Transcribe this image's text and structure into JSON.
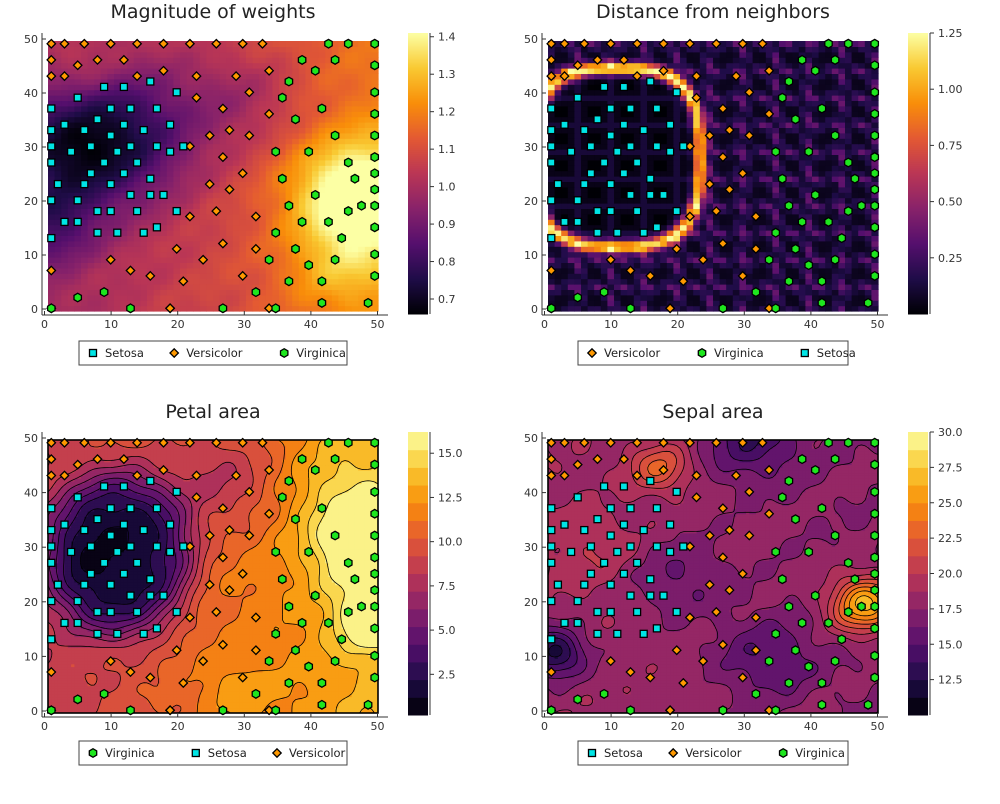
{
  "theme": {
    "colormap": [
      "#000004",
      "#1f0c48",
      "#550f6d",
      "#88226a",
      "#ba3655",
      "#e35933",
      "#f98e09",
      "#f9c932",
      "#fcffa4"
    ],
    "marker_colors": {
      "Setosa": "#00e5e5",
      "Versicolor": "#ff9900",
      "Virginica": "#1ee61e"
    },
    "marker_shapes": {
      "Setosa": "square",
      "Versicolor": "diamond",
      "Virginica": "hexagon"
    }
  },
  "chart_data": [
    {
      "type": "heatmap",
      "title": "Magnitude of weights",
      "field": "magnitude",
      "render": "pixel",
      "xlim": [
        0,
        50
      ],
      "ylim": [
        0,
        50
      ],
      "xticks": [
        0,
        10,
        20,
        30,
        40,
        50
      ],
      "yticks": [
        0,
        10,
        20,
        30,
        40,
        50
      ],
      "colorbar": {
        "min": 0.66,
        "max": 1.41,
        "ticks": [
          "0.7",
          "0.8",
          "0.9",
          "1.0",
          "1.1",
          "1.2",
          "1.3",
          "1.4"
        ]
      },
      "legend": [
        "Setosa",
        "Versicolor",
        "Virginica"
      ]
    },
    {
      "type": "heatmap",
      "title": "Distance from neighbors",
      "field": "distance",
      "render": "pixel",
      "xlim": [
        0,
        50
      ],
      "ylim": [
        0,
        50
      ],
      "xticks": [
        0,
        10,
        20,
        30,
        40,
        50
      ],
      "yticks": [
        0,
        10,
        20,
        30,
        40,
        50
      ],
      "colorbar": {
        "min": 0.0,
        "max": 1.25,
        "ticks": [
          "0.25",
          "0.50",
          "0.75",
          "1.00",
          "1.25"
        ]
      },
      "legend": [
        "Versicolor",
        "Virginica",
        "Setosa"
      ]
    },
    {
      "type": "heatmap",
      "title": "Petal area",
      "field": "petal",
      "render": "contour",
      "xlim": [
        0,
        50
      ],
      "ylim": [
        0,
        50
      ],
      "xticks": [
        0,
        10,
        20,
        30,
        40,
        50
      ],
      "yticks": [
        0,
        10,
        20,
        30,
        40,
        50
      ],
      "colorbar": {
        "min": 0.2,
        "max": 16.2,
        "ticks": [
          "2.5",
          "5.0",
          "7.5",
          "10.0",
          "12.5",
          "15.0"
        ],
        "levels": 16
      },
      "legend": [
        "Virginica",
        "Setosa",
        "Versicolor"
      ]
    },
    {
      "type": "heatmap",
      "title": "Sepal area",
      "field": "sepal",
      "render": "contour",
      "xlim": [
        0,
        50
      ],
      "ylim": [
        0,
        50
      ],
      "xticks": [
        0,
        10,
        20,
        30,
        40,
        50
      ],
      "yticks": [
        0,
        10,
        20,
        30,
        40,
        50
      ],
      "colorbar": {
        "min": 10.0,
        "max": 30.0,
        "ticks": [
          "12.5",
          "15.0",
          "17.5",
          "20.0",
          "22.5",
          "25.0",
          "27.5",
          "30.0"
        ],
        "levels": 16
      },
      "legend": [
        "Setosa",
        "Versicolor",
        "Virginica"
      ]
    }
  ],
  "scatter_points": {
    "Setosa": [
      [
        1,
        14
      ],
      [
        1,
        21
      ],
      [
        1,
        28
      ],
      [
        1,
        31
      ],
      [
        1,
        34
      ],
      [
        1,
        38
      ],
      [
        3,
        17
      ],
      [
        2,
        24
      ],
      [
        3,
        35
      ],
      [
        4,
        30
      ],
      [
        5,
        17
      ],
      [
        5,
        21
      ],
      [
        5,
        40
      ],
      [
        6,
        24
      ],
      [
        6,
        34
      ],
      [
        7,
        26
      ],
      [
        7,
        31
      ],
      [
        8,
        15
      ],
      [
        8,
        19
      ],
      [
        8,
        36
      ],
      [
        9,
        28
      ],
      [
        9,
        42
      ],
      [
        10,
        19
      ],
      [
        10,
        24
      ],
      [
        10,
        33
      ],
      [
        10,
        38
      ],
      [
        11,
        15
      ],
      [
        11,
        30
      ],
      [
        12,
        26
      ],
      [
        12,
        35
      ],
      [
        12,
        42
      ],
      [
        13,
        22
      ],
      [
        13,
        31
      ],
      [
        13,
        38
      ],
      [
        14,
        19
      ],
      [
        14,
        28
      ],
      [
        15,
        15
      ],
      [
        15,
        34
      ],
      [
        16,
        25
      ],
      [
        16,
        43
      ],
      [
        17,
        16
      ],
      [
        17,
        31
      ],
      [
        17,
        38
      ],
      [
        18,
        22
      ],
      [
        19,
        30
      ],
      [
        19,
        35
      ],
      [
        20,
        19
      ],
      [
        20,
        41
      ],
      [
        21,
        31
      ],
      [
        16,
        22
      ]
    ],
    "Versicolor": [
      [
        1,
        1
      ],
      [
        1,
        8
      ],
      [
        1,
        44
      ],
      [
        1,
        47
      ],
      [
        1,
        50
      ],
      [
        3,
        50
      ],
      [
        3,
        44
      ],
      [
        5,
        46
      ],
      [
        6,
        50
      ],
      [
        8,
        47
      ],
      [
        10,
        50
      ],
      [
        10,
        10
      ],
      [
        12,
        47
      ],
      [
        13,
        8
      ],
      [
        14,
        50
      ],
      [
        14,
        44
      ],
      [
        16,
        7
      ],
      [
        18,
        50
      ],
      [
        18,
        45
      ],
      [
        19,
        1
      ],
      [
        20,
        12
      ],
      [
        21,
        6
      ],
      [
        22,
        50
      ],
      [
        23,
        44
      ],
      [
        24,
        10
      ],
      [
        25,
        33
      ],
      [
        26,
        50
      ],
      [
        26,
        19
      ],
      [
        27,
        38
      ],
      [
        27,
        13
      ],
      [
        27,
        29
      ],
      [
        28,
        23
      ],
      [
        29,
        44
      ],
      [
        30,
        50
      ],
      [
        30,
        26
      ],
      [
        30,
        7
      ],
      [
        31,
        41
      ],
      [
        31,
        33
      ],
      [
        32,
        18
      ],
      [
        32,
        12
      ],
      [
        33,
        50
      ],
      [
        34,
        45
      ],
      [
        34,
        37
      ],
      [
        34,
        1
      ],
      [
        25,
        24
      ],
      [
        23,
        40
      ],
      [
        22,
        31
      ],
      [
        19,
        1
      ],
      [
        22,
        18
      ],
      [
        28,
        34
      ]
    ],
    "Virginica": [
      [
        1,
        1
      ],
      [
        5,
        3
      ],
      [
        9,
        4
      ],
      [
        13,
        1
      ],
      [
        27,
        1
      ],
      [
        32,
        4
      ],
      [
        35,
        1
      ],
      [
        37,
        6
      ],
      [
        42,
        2
      ],
      [
        49,
        2
      ],
      [
        50,
        7
      ],
      [
        50,
        11
      ],
      [
        50,
        16
      ],
      [
        50,
        20
      ],
      [
        50,
        23
      ],
      [
        50,
        26
      ],
      [
        50,
        29
      ],
      [
        50,
        33
      ],
      [
        50,
        37
      ],
      [
        50,
        41
      ],
      [
        50,
        46
      ],
      [
        50,
        50
      ],
      [
        46,
        50
      ],
      [
        43,
        50
      ],
      [
        44,
        47
      ],
      [
        41,
        45
      ],
      [
        39,
        47
      ],
      [
        37,
        43
      ],
      [
        38,
        36
      ],
      [
        36,
        40
      ],
      [
        35,
        30
      ],
      [
        36,
        25
      ],
      [
        37,
        20
      ],
      [
        35,
        15
      ],
      [
        34,
        10
      ],
      [
        38,
        12
      ],
      [
        40,
        9
      ],
      [
        42,
        6
      ],
      [
        44,
        10
      ],
      [
        45,
        14
      ],
      [
        46,
        19
      ],
      [
        48,
        20
      ],
      [
        47,
        25
      ],
      [
        46,
        28
      ],
      [
        44,
        33
      ],
      [
        42,
        38
      ],
      [
        40,
        30
      ],
      [
        41,
        22
      ],
      [
        39,
        17
      ],
      [
        43,
        17
      ]
    ]
  }
}
